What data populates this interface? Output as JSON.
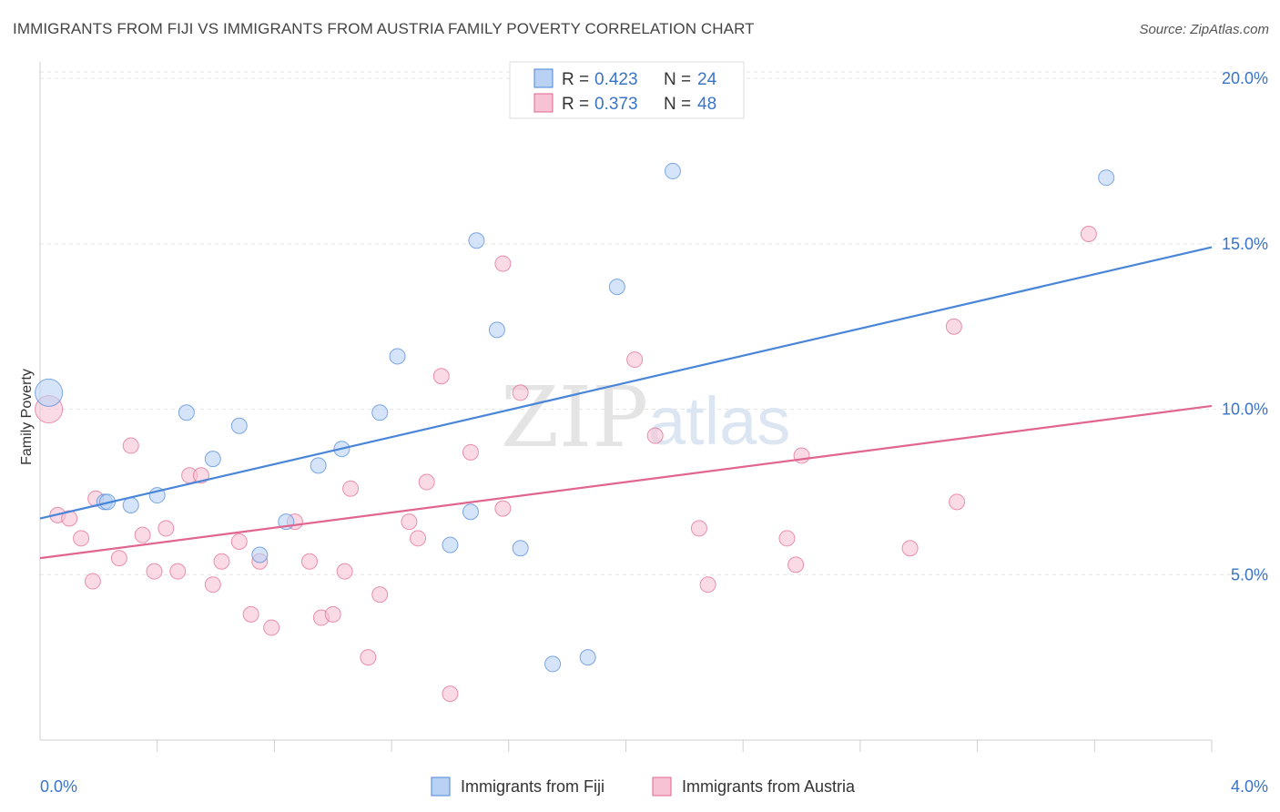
{
  "title": "IMMIGRANTS FROM FIJI VS IMMIGRANTS FROM AUSTRIA FAMILY POVERTY CORRELATION CHART",
  "source": "Source: ZipAtlas.com",
  "watermark": {
    "zip": "ZIP",
    "atlas": "atlas"
  },
  "colors": {
    "fiji": "#4a86d8",
    "fiji_fill": "#b9d2f3",
    "austria": "#e0668f",
    "austria_fill": "#f7c3d4",
    "value_text": "#3a74c8"
  },
  "stats_legend": [
    {
      "r_label": "R = ",
      "r_value": "0.423",
      "n_label": "N = ",
      "n_value": "24"
    },
    {
      "r_label": "R = ",
      "r_value": "0.373",
      "n_label": "N = ",
      "n_value": "48"
    }
  ],
  "chart_data": {
    "type": "scatter",
    "ylabel": "Family Poverty",
    "x_tick_labels": [
      "0.0%",
      "4.0%"
    ],
    "y_tick_labels": [
      "20.0%",
      "15.0%",
      "10.0%",
      "5.0%"
    ],
    "xlim": [
      0,
      4.0
    ],
    "ylim": [
      0,
      20.5
    ],
    "grid": true,
    "legend_position": "bottom",
    "series": [
      {
        "name": "Immigrants from Fiji",
        "trend": [
          [
            0.0,
            6.7
          ],
          [
            4.0,
            14.9
          ]
        ],
        "points": [
          [
            0.03,
            10.5
          ],
          [
            0.22,
            7.2
          ],
          [
            0.23,
            7.2
          ],
          [
            0.31,
            7.1
          ],
          [
            0.4,
            7.4
          ],
          [
            0.5,
            9.9
          ],
          [
            0.59,
            8.5
          ],
          [
            0.68,
            9.5
          ],
          [
            0.75,
            5.6
          ],
          [
            0.84,
            6.6
          ],
          [
            0.95,
            8.3
          ],
          [
            1.03,
            8.8
          ],
          [
            1.16,
            9.9
          ],
          [
            1.22,
            11.6
          ],
          [
            1.4,
            5.9
          ],
          [
            1.47,
            6.9
          ],
          [
            1.49,
            15.1
          ],
          [
            1.56,
            12.4
          ],
          [
            1.64,
            5.8
          ],
          [
            1.75,
            2.3
          ],
          [
            1.87,
            2.5
          ],
          [
            1.97,
            13.7
          ],
          [
            2.16,
            17.2
          ],
          [
            3.64,
            17.0
          ]
        ]
      },
      {
        "name": "Immigrants from Austria",
        "trend": [
          [
            0.0,
            5.5
          ],
          [
            4.0,
            10.1
          ]
        ],
        "points": [
          [
            0.03,
            10.0
          ],
          [
            0.06,
            6.8
          ],
          [
            0.1,
            6.7
          ],
          [
            0.14,
            6.1
          ],
          [
            0.18,
            4.8
          ],
          [
            0.19,
            7.3
          ],
          [
            0.27,
            5.5
          ],
          [
            0.31,
            8.9
          ],
          [
            0.35,
            6.2
          ],
          [
            0.39,
            5.1
          ],
          [
            0.43,
            6.4
          ],
          [
            0.47,
            5.1
          ],
          [
            0.51,
            8.0
          ],
          [
            0.55,
            8.0
          ],
          [
            0.59,
            4.7
          ],
          [
            0.62,
            5.4
          ],
          [
            0.68,
            6.0
          ],
          [
            0.72,
            3.8
          ],
          [
            0.75,
            5.4
          ],
          [
            0.79,
            3.4
          ],
          [
            0.87,
            6.6
          ],
          [
            0.92,
            5.4
          ],
          [
            0.96,
            3.7
          ],
          [
            1.0,
            3.8
          ],
          [
            1.04,
            5.1
          ],
          [
            1.06,
            7.6
          ],
          [
            1.12,
            2.5
          ],
          [
            1.16,
            4.4
          ],
          [
            1.26,
            6.6
          ],
          [
            1.29,
            6.1
          ],
          [
            1.32,
            7.8
          ],
          [
            1.37,
            11.0
          ],
          [
            1.4,
            1.4
          ],
          [
            1.47,
            8.7
          ],
          [
            1.58,
            7.0
          ],
          [
            1.58,
            14.4
          ],
          [
            1.64,
            10.5
          ],
          [
            2.03,
            11.5
          ],
          [
            2.1,
            9.2
          ],
          [
            2.25,
            6.4
          ],
          [
            2.28,
            4.7
          ],
          [
            2.55,
            6.1
          ],
          [
            2.58,
            5.3
          ],
          [
            2.6,
            8.6
          ],
          [
            2.97,
            5.8
          ],
          [
            3.12,
            12.5
          ],
          [
            3.13,
            7.2
          ],
          [
            3.58,
            15.3
          ]
        ]
      }
    ]
  }
}
